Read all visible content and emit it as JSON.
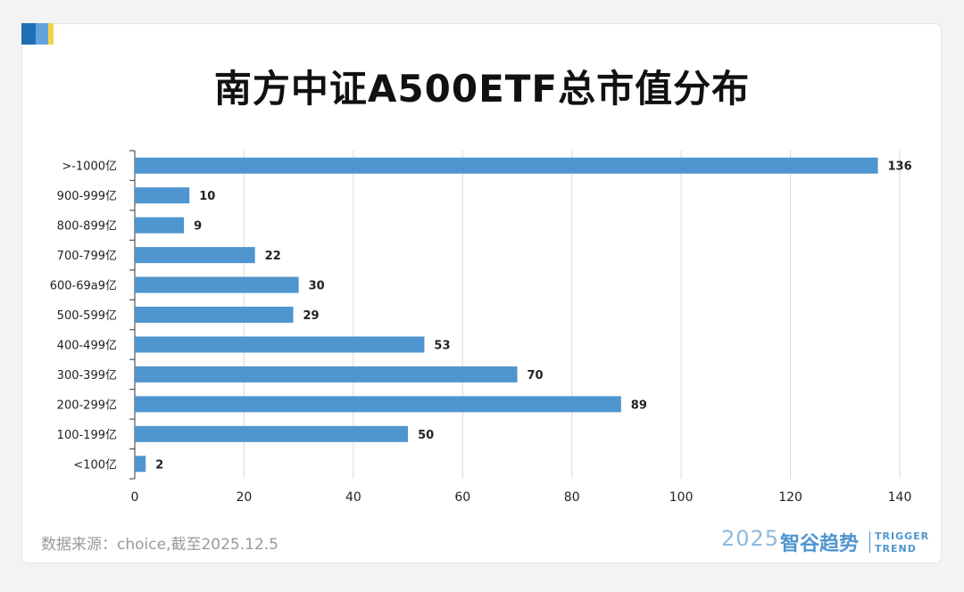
{
  "title": "南方中证A500ETF总市值分布",
  "source_note": "数据来源：choice,截至2025.12.5",
  "brand": {
    "year": "2025",
    "name_cn": "智谷趋势",
    "name_en_line1": "TRIGGER",
    "name_en_line2": "TREND"
  },
  "colors": {
    "bar": "#4f95cf",
    "grid": "#d9d9d9",
    "axis": "#555555",
    "text": "#222222"
  },
  "chart_data": {
    "type": "bar",
    "orientation": "horizontal",
    "categories": [
      ">-1000亿",
      "900-999亿",
      "800-899亿",
      "700-799亿",
      "600-69a9亿",
      "500-599亿",
      "400-499亿",
      "300-399亿",
      "200-299亿",
      "100-199亿",
      "<100亿"
    ],
    "values": [
      136,
      10,
      9,
      22,
      30,
      29,
      53,
      70,
      89,
      50,
      2
    ],
    "xlim": [
      0,
      140
    ],
    "xticks": [
      0,
      20,
      40,
      60,
      80,
      100,
      120,
      140
    ],
    "grid": "vertical",
    "data_labels": true
  }
}
